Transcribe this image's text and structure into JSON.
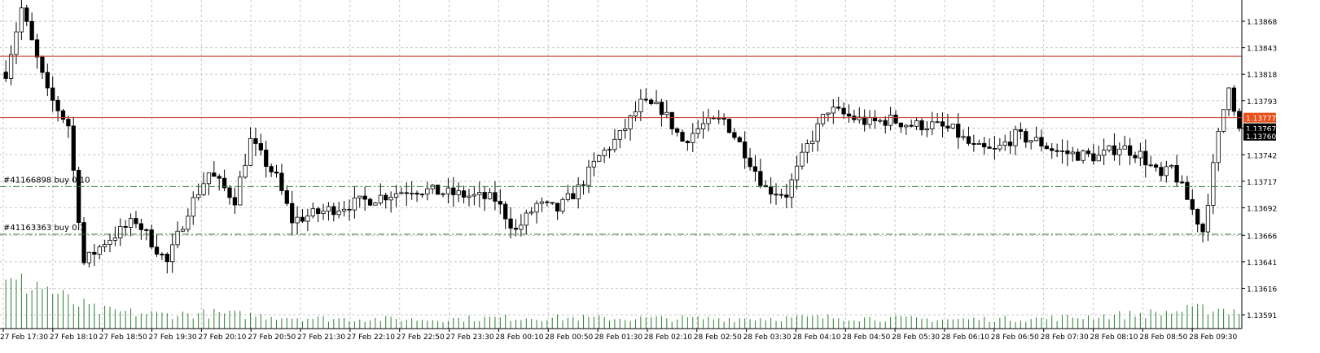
{
  "colors": {
    "background": "#ffffff",
    "grid": "#c8c8c8",
    "candle_body": "#000000",
    "candle_up_fill": "#ffffff",
    "volume": "#2e7d32",
    "resistance_line": "#c0392b",
    "order_line": "#2e7d32",
    "price_marker_current": "#e8501c",
    "price_marker_last": "#000000",
    "label_text": "#000000"
  },
  "chart_data": {
    "type": "candlestick",
    "timeframe_note": "10-minute candles",
    "grid": true,
    "ylim": [
      1.13578,
      1.13888
    ],
    "y_ticks": [
      "1.13868",
      "1.13843",
      "1.13818",
      "1.13793",
      "1.13767",
      "1.13742",
      "1.13717",
      "1.13692",
      "1.13666",
      "1.13641",
      "1.13616",
      "1.13591"
    ],
    "y_tick_values": [
      1.13868,
      1.13843,
      1.13818,
      1.13793,
      1.13767,
      1.13742,
      1.13717,
      1.13692,
      1.13666,
      1.13641,
      1.13616,
      1.13591
    ],
    "x_ticks": [
      "27 Feb 17:30",
      "27 Feb 18:10",
      "27 Feb 18:50",
      "27 Feb 19:30",
      "27 Feb 20:10",
      "27 Feb 20:50",
      "27 Feb 21:30",
      "27 Feb 22:10",
      "27 Feb 22:50",
      "27 Feb 23:30",
      "28 Feb 00:10",
      "28 Feb 00:50",
      "28 Feb 01:30",
      "28 Feb 02:10",
      "28 Feb 02:50",
      "28 Feb 03:30",
      "28 Feb 04:10",
      "28 Feb 04:50",
      "28 Feb 05:30",
      "28 Feb 06:10",
      "28 Feb 06:50",
      "28 Feb 07:30",
      "28 Feb 08:10",
      "28 Feb 08:50",
      "28 Feb 09:30"
    ],
    "horizontal_lines": [
      {
        "price": 1.13835,
        "style": "solid",
        "color": "#c0392b"
      },
      {
        "price": 1.13777,
        "style": "solid",
        "color": "#c0392b"
      }
    ],
    "order_lines": [
      {
        "label": "#41166898 buy 0.10",
        "price": 1.13712,
        "style": "dashdot"
      },
      {
        "label": "#41163363 buy 0.1",
        "price": 1.13667,
        "style": "dashdot"
      }
    ],
    "price_markers": [
      {
        "text": "1.13777",
        "price": 1.13777,
        "color": "#e8501c"
      },
      {
        "text": "1.13767",
        "price": 1.13767,
        "color": "#000000"
      },
      {
        "text": "1.13760",
        "price": 1.1376,
        "color": "#000000"
      }
    ],
    "anchors": [
      {
        "price": 1.1382,
        "time_index": 0
      },
      {
        "price": 1.1388,
        "time_index": 3
      },
      {
        "price": 1.138,
        "time_index": 8
      },
      {
        "price": 1.1377,
        "time_index": 12
      },
      {
        "price": 1.1364,
        "time_index": 15
      },
      {
        "price": 1.1366,
        "time_index": 19
      },
      {
        "price": 1.1368,
        "time_index": 25
      },
      {
        "price": 1.1364,
        "time_index": 31
      },
      {
        "price": 1.1369,
        "time_index": 35
      },
      {
        "price": 1.13725,
        "time_index": 39
      },
      {
        "price": 1.137,
        "time_index": 44
      },
      {
        "price": 1.13755,
        "time_index": 47
      },
      {
        "price": 1.1372,
        "time_index": 52
      },
      {
        "price": 1.1368,
        "time_index": 55
      },
      {
        "price": 1.1369,
        "time_index": 62
      },
      {
        "price": 1.137,
        "time_index": 70
      },
      {
        "price": 1.1371,
        "time_index": 78
      },
      {
        "price": 1.13705,
        "time_index": 86
      },
      {
        "price": 1.137,
        "time_index": 94
      },
      {
        "price": 1.1367,
        "time_index": 98
      },
      {
        "price": 1.13695,
        "time_index": 102
      },
      {
        "price": 1.1369,
        "time_index": 106
      },
      {
        "price": 1.1371,
        "time_index": 110
      },
      {
        "price": 1.1374,
        "time_index": 114
      },
      {
        "price": 1.1376,
        "time_index": 118
      },
      {
        "price": 1.1379,
        "time_index": 122
      },
      {
        "price": 1.13785,
        "time_index": 126
      },
      {
        "price": 1.13755,
        "time_index": 130
      },
      {
        "price": 1.1377,
        "time_index": 134
      },
      {
        "price": 1.13775,
        "time_index": 138
      },
      {
        "price": 1.13745,
        "time_index": 142
      },
      {
        "price": 1.1371,
        "time_index": 146
      },
      {
        "price": 1.13705,
        "time_index": 150
      },
      {
        "price": 1.1375,
        "time_index": 154
      },
      {
        "price": 1.13785,
        "time_index": 158
      },
      {
        "price": 1.13778,
        "time_index": 162
      },
      {
        "price": 1.13772,
        "time_index": 166
      },
      {
        "price": 1.13775,
        "time_index": 170
      },
      {
        "price": 1.1377,
        "time_index": 174
      },
      {
        "price": 1.1377,
        "time_index": 178
      },
      {
        "price": 1.13765,
        "time_index": 182
      },
      {
        "price": 1.13748,
        "time_index": 186
      },
      {
        "price": 1.13745,
        "time_index": 190
      },
      {
        "price": 1.1376,
        "time_index": 194
      },
      {
        "price": 1.13755,
        "time_index": 198
      },
      {
        "price": 1.13745,
        "time_index": 202
      },
      {
        "price": 1.13742,
        "time_index": 206
      },
      {
        "price": 1.1374,
        "time_index": 210
      },
      {
        "price": 1.1375,
        "time_index": 214
      },
      {
        "price": 1.13742,
        "time_index": 218
      },
      {
        "price": 1.1372,
        "time_index": 222
      },
      {
        "price": 1.1373,
        "time_index": 224
      },
      {
        "price": 1.1369,
        "time_index": 228
      },
      {
        "price": 1.1367,
        "time_index": 230
      },
      {
        "price": 1.1376,
        "time_index": 233
      },
      {
        "price": 1.1381,
        "time_index": 235
      },
      {
        "price": 1.13765,
        "time_index": 237
      }
    ],
    "candle_count": 238,
    "volume_profile": [
      {
        "time_index": 0,
        "value": 0.85
      },
      {
        "time_index": 6,
        "value": 0.9
      },
      {
        "time_index": 12,
        "value": 0.55
      },
      {
        "time_index": 18,
        "value": 0.35
      },
      {
        "time_index": 30,
        "value": 0.28
      },
      {
        "time_index": 40,
        "value": 0.3
      },
      {
        "time_index": 60,
        "value": 0.2
      },
      {
        "time_index": 80,
        "value": 0.18
      },
      {
        "time_index": 100,
        "value": 0.22
      },
      {
        "time_index": 120,
        "value": 0.2
      },
      {
        "time_index": 140,
        "value": 0.2
      },
      {
        "time_index": 160,
        "value": 0.22
      },
      {
        "time_index": 180,
        "value": 0.18
      },
      {
        "time_index": 200,
        "value": 0.2
      },
      {
        "time_index": 220,
        "value": 0.3
      },
      {
        "time_index": 232,
        "value": 0.4
      },
      {
        "time_index": 237,
        "value": 0.35
      }
    ]
  }
}
